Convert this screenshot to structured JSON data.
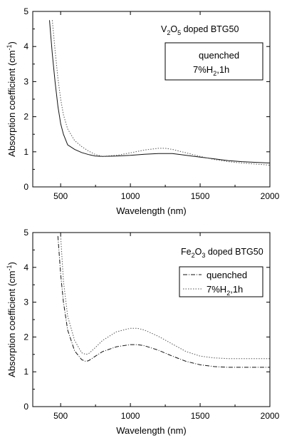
{
  "chart_data": [
    {
      "type": "line",
      "annotation": "V2O5 doped BTG50",
      "ann": {
        "base1": "V",
        "sub1": "2",
        "base2": "O",
        "sub2": "5",
        "rest": " doped BTG50"
      },
      "xlabel": "Wavelength (nm)",
      "ylabel": "Absorption coefficient (cm",
      "ylabel_sup": "-1",
      "ylabel_end": ")",
      "xlim": [
        300,
        2000
      ],
      "ylim": [
        0,
        5
      ],
      "xticks": [
        500,
        1000,
        1500,
        2000
      ],
      "xtick_labels": [
        "500",
        "1000",
        "1500",
        "2000"
      ],
      "yticks": [
        0,
        1,
        2,
        3,
        4,
        5
      ],
      "ytick_labels": [
        "0",
        "1",
        "2",
        "3",
        "4",
        "5"
      ],
      "legend_position": "top-right",
      "series": [
        {
          "name": "quenched",
          "legend_label": "quenched",
          "color": "#111111",
          "dash": "",
          "x": [
            420,
            440,
            460,
            480,
            500,
            520,
            550,
            600,
            650,
            700,
            750,
            800,
            900,
            1000,
            1100,
            1200,
            1300,
            1400,
            1500,
            1600,
            1700,
            1800,
            1900,
            2000
          ],
          "y": [
            4.75,
            3.8,
            3.0,
            2.3,
            1.8,
            1.5,
            1.2,
            1.07,
            0.98,
            0.92,
            0.88,
            0.87,
            0.88,
            0.9,
            0.93,
            0.95,
            0.95,
            0.9,
            0.85,
            0.8,
            0.75,
            0.72,
            0.7,
            0.68
          ]
        },
        {
          "name": "7%H2,1h",
          "legend_label": "7%H",
          "legend_sub": "2",
          "legend_rest": ",1h",
          "color": "#555555",
          "dash": "1.5 2",
          "x": [
            440,
            460,
            480,
            500,
            520,
            550,
            600,
            650,
            700,
            750,
            800,
            900,
            1000,
            1100,
            1200,
            1250,
            1300,
            1400,
            1500,
            1600,
            1700,
            1800,
            1900,
            2000
          ],
          "y": [
            4.75,
            3.9,
            3.1,
            2.5,
            2.05,
            1.65,
            1.32,
            1.15,
            1.02,
            0.92,
            0.87,
            0.9,
            0.97,
            1.05,
            1.1,
            1.1,
            1.07,
            0.97,
            0.87,
            0.78,
            0.72,
            0.68,
            0.65,
            0.62
          ]
        }
      ]
    },
    {
      "type": "line",
      "annotation": "Fe2O3 doped BTG50",
      "ann": {
        "base1": "Fe",
        "sub1": "2",
        "base2": "O",
        "sub2": "3",
        "rest": " doped BTG50"
      },
      "xlabel": "Wavelength (nm)",
      "ylabel": "Absorption coefficient (cm",
      "ylabel_sup": "-1",
      "ylabel_end": ")",
      "xlim": [
        300,
        2000
      ],
      "ylim": [
        0,
        5
      ],
      "xticks": [
        500,
        1000,
        1500,
        2000
      ],
      "xtick_labels": [
        "500",
        "1000",
        "1500",
        "2000"
      ],
      "yticks": [
        0,
        1,
        2,
        3,
        4,
        5
      ],
      "ytick_labels": [
        "0",
        "1",
        "2",
        "3",
        "4",
        "5"
      ],
      "legend_position": "top-right",
      "series": [
        {
          "name": "quenched",
          "legend_label": "quenched",
          "color": "#111111",
          "dash": "6 2 1 2",
          "x": [
            480,
            500,
            520,
            550,
            600,
            650,
            680,
            700,
            750,
            800,
            900,
            1000,
            1050,
            1100,
            1200,
            1300,
            1400,
            1500,
            1600,
            1700,
            1800,
            1900,
            2000
          ],
          "y": [
            4.9,
            3.8,
            3.0,
            2.2,
            1.6,
            1.35,
            1.3,
            1.32,
            1.45,
            1.58,
            1.72,
            1.78,
            1.78,
            1.75,
            1.62,
            1.45,
            1.3,
            1.2,
            1.15,
            1.13,
            1.13,
            1.13,
            1.13
          ]
        },
        {
          "name": "7%H2,1h",
          "legend_label": "7%H",
          "legend_sub": "2",
          "legend_rest": ",1h",
          "color": "#555555",
          "dash": "1.5 2",
          "x": [
            500,
            520,
            550,
            600,
            650,
            680,
            700,
            750,
            800,
            900,
            1000,
            1050,
            1100,
            1200,
            1300,
            1400,
            1500,
            1600,
            1700,
            1800,
            1900,
            2000
          ],
          "y": [
            4.9,
            3.6,
            2.6,
            1.9,
            1.55,
            1.5,
            1.52,
            1.7,
            1.9,
            2.15,
            2.25,
            2.25,
            2.2,
            2.02,
            1.8,
            1.58,
            1.45,
            1.4,
            1.38,
            1.38,
            1.38,
            1.38
          ]
        }
      ]
    }
  ]
}
